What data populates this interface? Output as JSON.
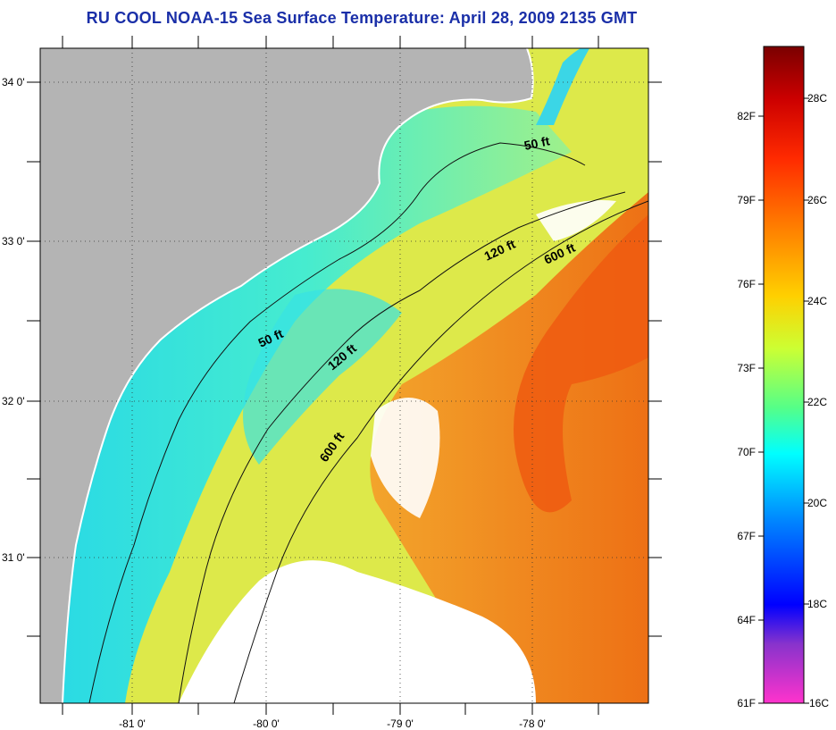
{
  "title": "RU COOL  NOAA-15  Sea Surface Temperature:  April 28, 2009 2135 GMT",
  "lat_labels": [
    "34 0'",
    "33 0'",
    "32 0'",
    "31 0'"
  ],
  "lon_labels": [
    "-81 0'",
    "-80 0'",
    "-79 0'",
    "-78 0'"
  ],
  "depth_labels": {
    "d50_north": "50 ft",
    "d120_north": "120 ft",
    "d600_north": "600 ft",
    "d50_mid": "50 ft",
    "d120_mid": "120 ft",
    "d600_south": "600 ft"
  },
  "colorbar": {
    "fahrenheit": [
      "82F",
      "79F",
      "76F",
      "73F",
      "70F",
      "67F",
      "64F",
      "61F"
    ],
    "celsius": [
      "28C",
      "26C",
      "24C",
      "22C",
      "20C",
      "18C",
      "16C"
    ],
    "colors": [
      "#7a0000",
      "#cc0000",
      "#ff2a00",
      "#ff7a00",
      "#ffd000",
      "#ccff33",
      "#55ff88",
      "#00ffff",
      "#0088ff",
      "#0000ff",
      "#8833cc",
      "#ff33cc"
    ]
  },
  "colors": {
    "land": "#b4b4b4",
    "shelf_cyan": "#3fe7d6",
    "mid_yellow": "#e8ee3a",
    "gulf_stream_orange": "#f28a1f",
    "cloud_white": "#ffffff"
  }
}
